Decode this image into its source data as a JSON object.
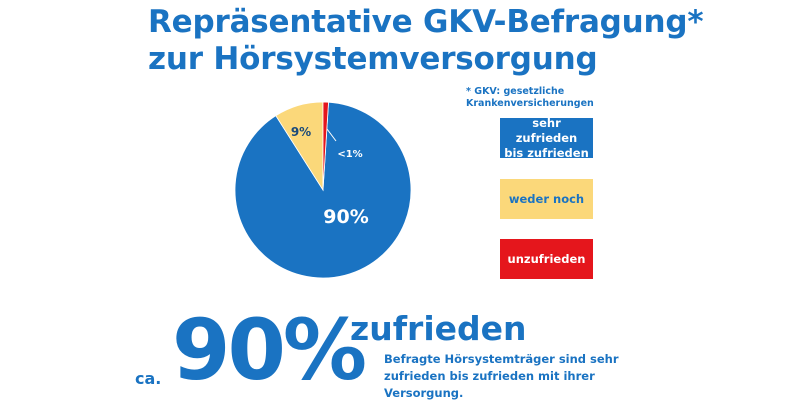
{
  "header": {
    "title_line1": "Repräsentative GKV-Befragung*",
    "title_line2": "zur Hörsystemversorgung"
  },
  "footnote": {
    "line1": "* GKV: gesetzliche",
    "line2": "Krankenversicherungen"
  },
  "colors": {
    "satisfied": "#1a73c2",
    "neutral": "#fbd87a",
    "dissatisfied": "#e5161c",
    "text": "#1a73c2"
  },
  "chart_data": {
    "type": "pie",
    "slices": [
      {
        "label": "sehr zufrieden bis zufrieden",
        "value": 90,
        "display": "90%",
        "color": "#1a73c2"
      },
      {
        "label": "weder noch",
        "value": 9,
        "display": "9%",
        "color": "#fbd87a"
      },
      {
        "label": "unzufrieden",
        "value": 1,
        "display": "<1%",
        "color": "#e5161c"
      }
    ],
    "legend_placement": "right"
  },
  "legend": {
    "satisfied_line1": "sehr zufrieden",
    "satisfied_line2": "bis zufrieden",
    "neutral": "weder noch",
    "dissatisfied": "unzufrieden"
  },
  "summary": {
    "prefix": "ca.",
    "percent": "90%",
    "word": "zufrieden",
    "desc_line1": "Befragte Hörsystemträger sind sehr",
    "desc_line2": "zufrieden bis zufrieden mit ihrer",
    "desc_line3": "Versorgung."
  }
}
